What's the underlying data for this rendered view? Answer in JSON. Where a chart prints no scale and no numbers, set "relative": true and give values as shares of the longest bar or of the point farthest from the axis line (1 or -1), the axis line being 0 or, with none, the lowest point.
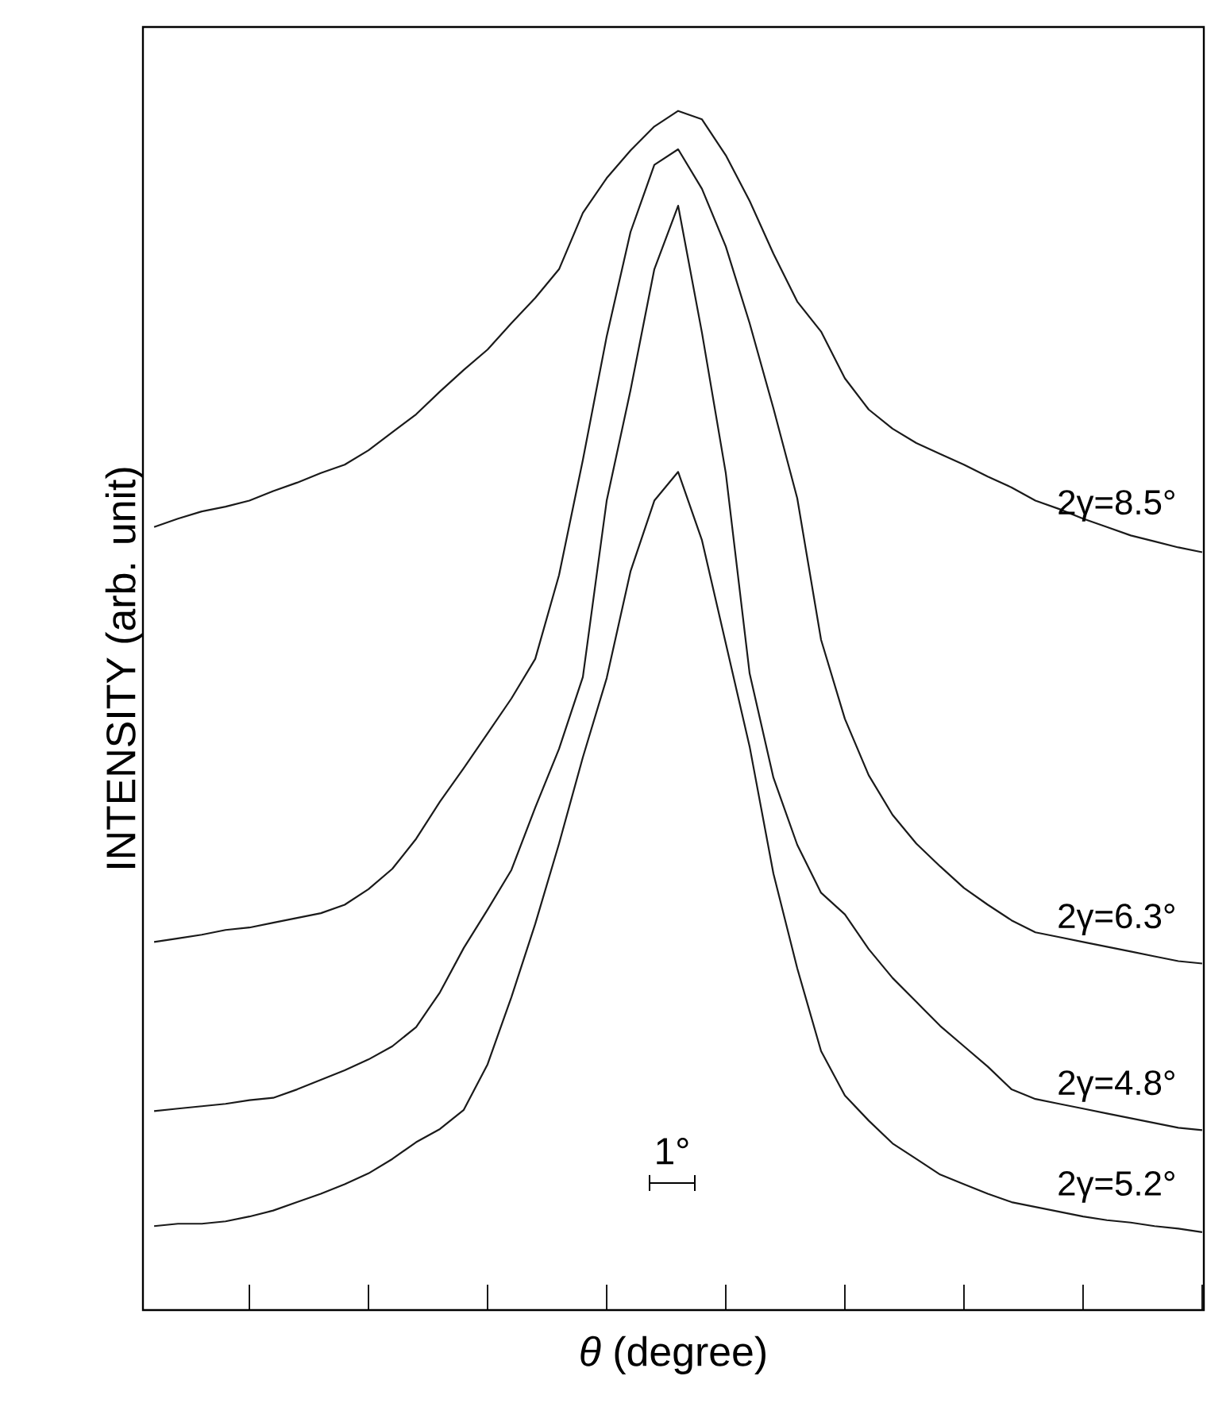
{
  "chart_data": {
    "type": "line",
    "relative": true,
    "xlabel": "*θ* (degree)",
    "ylabel": "INTENSITY (arb. unit)",
    "annotations": [
      "1°"
    ],
    "categories": [
      null,
      null,
      null,
      null,
      null,
      null,
      null,
      null,
      null,
      null,
      null,
      null,
      null,
      null,
      null,
      null,
      null,
      null,
      null,
      null,
      null,
      null,
      null,
      null,
      null,
      null,
      null,
      null,
      null,
      null,
      null,
      null,
      null,
      null,
      null,
      null,
      null,
      null,
      null,
      null,
      null,
      null,
      null,
      null,
      null
    ],
    "legend": false,
    "series": [
      {
        "name": "2γ=8.5°",
        "color": "#1a1a1a",
        "values": [
          0.653,
          0.66,
          0.666,
          0.67,
          0.675,
          0.683,
          0.69,
          0.698,
          0.705,
          0.717,
          0.732,
          0.747,
          0.766,
          0.784,
          0.801,
          0.823,
          0.844,
          0.868,
          0.915,
          0.944,
          0.967,
          0.987,
          1.0,
          0.993,
          0.963,
          0.925,
          0.881,
          0.841,
          0.816,
          0.777,
          0.751,
          0.735,
          0.723,
          0.714,
          0.705,
          0.695,
          0.686,
          0.675,
          0.668,
          0.66,
          0.653,
          0.646,
          0.641,
          0.636,
          0.632
        ]
      },
      {
        "name": "2γ=6.3°",
        "color": "#1a1a1a",
        "values": [
          0.307,
          0.31,
          0.313,
          0.317,
          0.319,
          0.323,
          0.327,
          0.331,
          0.338,
          0.351,
          0.368,
          0.393,
          0.424,
          0.452,
          0.481,
          0.51,
          0.543,
          0.613,
          0.709,
          0.812,
          0.899,
          0.955,
          0.968,
          0.935,
          0.887,
          0.823,
          0.752,
          0.677,
          0.559,
          0.493,
          0.446,
          0.413,
          0.389,
          0.37,
          0.352,
          0.338,
          0.325,
          0.315,
          0.311,
          0.307,
          0.303,
          0.299,
          0.295,
          0.291,
          0.289
        ]
      },
      {
        "name": "2γ=4.8°",
        "color": "#1a1a1a",
        "values": [
          0.166,
          0.168,
          0.17,
          0.172,
          0.175,
          0.177,
          0.184,
          0.192,
          0.2,
          0.209,
          0.22,
          0.236,
          0.265,
          0.302,
          0.334,
          0.367,
          0.419,
          0.468,
          0.528,
          0.675,
          0.767,
          0.868,
          0.921,
          0.815,
          0.698,
          0.531,
          0.444,
          0.388,
          0.348,
          0.33,
          0.301,
          0.277,
          0.257,
          0.237,
          0.22,
          0.203,
          0.184,
          0.176,
          0.172,
          0.168,
          0.164,
          0.16,
          0.156,
          0.152,
          0.15
        ]
      },
      {
        "name": "2γ=5.2°",
        "color": "#1a1a1a",
        "values": [
          0.07,
          0.072,
          0.072,
          0.074,
          0.078,
          0.083,
          0.09,
          0.097,
          0.105,
          0.114,
          0.126,
          0.14,
          0.151,
          0.167,
          0.205,
          0.261,
          0.322,
          0.389,
          0.461,
          0.527,
          0.616,
          0.675,
          0.699,
          0.642,
          0.556,
          0.47,
          0.364,
          0.285,
          0.216,
          0.179,
          0.158,
          0.139,
          0.126,
          0.113,
          0.105,
          0.097,
          0.09,
          0.086,
          0.082,
          0.078,
          0.075,
          0.073,
          0.07,
          0.068,
          0.065
        ]
      }
    ]
  }
}
